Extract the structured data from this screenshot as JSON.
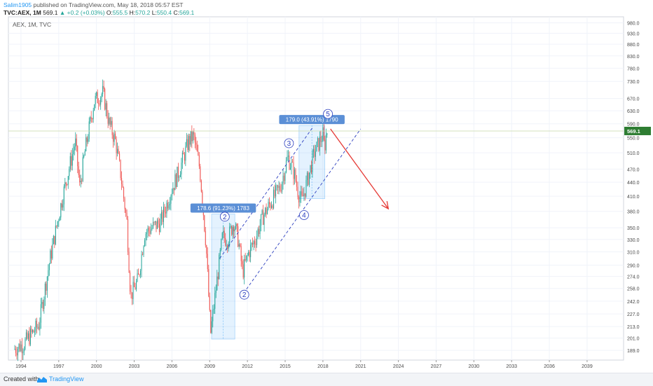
{
  "header": {
    "publisher": "Salim1905",
    "published_text": "published on TradingView.com, May 18, 2018 05:57 EST",
    "symbol": "TVC:AEX, 1M",
    "last": "569.1",
    "change": "+0.2 (+0.03%)",
    "open_label": "O:",
    "open": "555.5",
    "high_label": "H:",
    "high": "570.2",
    "low_label": "L:",
    "low": "550.4",
    "close_label": "C:",
    "close": "569.1"
  },
  "chart_data": {
    "type": "candlestick",
    "legend": "AEX, 1M, TVC",
    "y_ticks": [
      189.0,
      201.0,
      213.0,
      227.0,
      242.0,
      258.0,
      274.0,
      290.0,
      310.0,
      330.0,
      350.0,
      380.0,
      410.0,
      440.0,
      470.0,
      510.0,
      550.0,
      590.0,
      630.0,
      670.0,
      730.0,
      780.0,
      830.0,
      880.0,
      930.0,
      980.0
    ],
    "y_tick_labels": [
      "189.0",
      "201.0",
      "213.0",
      "227.0",
      "242.0",
      "258.0",
      "274.0",
      "290.0",
      "310.0",
      "330.0",
      "350.0",
      "380.0",
      "410.0",
      "440.0",
      "470.0",
      "510.0",
      "550.0",
      "590.0",
      "630.0",
      "670.0",
      "730.0",
      "780.0",
      "830.0",
      "880.0",
      "930.0",
      "980.0"
    ],
    "x_ticks": [
      1994,
      1997,
      2000,
      2003,
      2006,
      2009,
      2012,
      2015,
      2018,
      2021,
      2024,
      2027,
      2030,
      2033,
      2036,
      2039
    ],
    "x_tick_labels": [
      "1994",
      "1997",
      "2000",
      "2003",
      "2006",
      "2009",
      "2012",
      "2015",
      "2018",
      "2021",
      "2024",
      "2027",
      "2030",
      "2033",
      "2036",
      "2039"
    ],
    "xlim": [
      1993.0,
      2041.9
    ],
    "ylim": [
      180,
      1010
    ],
    "y_scale": "log",
    "last_price": 569.1,
    "last_price_label": "569.1",
    "up_color": "#26a69a",
    "down_color": "#ef5350",
    "anchors": [
      [
        1993.5,
        190
      ],
      [
        1994.3,
        195
      ],
      [
        1995.5,
        215
      ],
      [
        1996.4,
        300
      ],
      [
        1997.4,
        410
      ],
      [
        1998.4,
        540
      ],
      [
        1998.75,
        430
      ],
      [
        1999.2,
        520
      ],
      [
        1999.9,
        660
      ],
      [
        2000.6,
        690
      ],
      [
        2001.1,
        590
      ],
      [
        2001.6,
        540
      ],
      [
        2002.0,
        460
      ],
      [
        2002.5,
        360
      ],
      [
        2002.8,
        248
      ],
      [
        2003.4,
        270
      ],
      [
        2003.9,
        340
      ],
      [
        2004.5,
        350
      ],
      [
        2005.2,
        360
      ],
      [
        2006.0,
        420
      ],
      [
        2006.7,
        470
      ],
      [
        2007.4,
        540
      ],
      [
        2007.8,
        555
      ],
      [
        2008.3,
        470
      ],
      [
        2008.8,
        320
      ],
      [
        2009.15,
        205
      ],
      [
        2009.6,
        260
      ],
      [
        2010.1,
        335
      ],
      [
        2010.5,
        330
      ],
      [
        2011.0,
        360
      ],
      [
        2011.35,
        330
      ],
      [
        2011.7,
        280
      ],
      [
        2012.2,
        310
      ],
      [
        2012.7,
        330
      ],
      [
        2013.3,
        370
      ],
      [
        2014.0,
        400
      ],
      [
        2014.7,
        430
      ],
      [
        2015.3,
        500
      ],
      [
        2015.8,
        460
      ],
      [
        2016.1,
        420
      ],
      [
        2016.4,
        400
      ],
      [
        2016.9,
        450
      ],
      [
        2017.4,
        510
      ],
      [
        2017.9,
        545
      ],
      [
        2018.1,
        560
      ],
      [
        2018.2,
        520
      ],
      [
        2018.38,
        569.1
      ]
    ],
    "annotations": {
      "wave_labels": [
        {
          "text": "2",
          "x": 2010.2,
          "y": 370
        },
        {
          "text": "2",
          "x": 2011.75,
          "y": 250
        },
        {
          "text": "3",
          "x": 2015.3,
          "y": 535
        },
        {
          "text": "4",
          "x": 2016.5,
          "y": 373
        },
        {
          "text": "5",
          "x": 2018.4,
          "y": 620
        }
      ],
      "ranges": [
        {
          "label": "178.6 (91.23%) 1783",
          "x0": 2009.15,
          "x1": 2011.0,
          "y0": 200,
          "y1": 375
        },
        {
          "label": "179.0 (43.91%) 1790",
          "x0": 2016.1,
          "x1": 2018.15,
          "y0": 405,
          "y1": 585
        }
      ],
      "channel_lines": [
        {
          "x0": 2009.8,
          "y0": 300,
          "x1": 2017.2,
          "y1": 580
        },
        {
          "x0": 2011.7,
          "y0": 252,
          "x1": 2021.0,
          "y1": 575
        }
      ],
      "arrow": {
        "x0": 2018.6,
        "y0": 575,
        "x1": 2023.2,
        "y1": 385
      }
    }
  },
  "footer": {
    "created_label": "Created with",
    "brand": "TradingView"
  }
}
